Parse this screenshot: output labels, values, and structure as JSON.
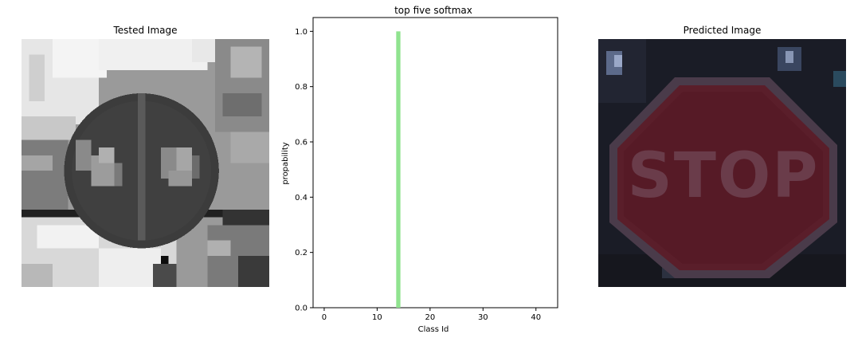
{
  "left_panel": {
    "title": "Tested Image",
    "icon": "grayscale-traffic-sign-image"
  },
  "right_panel": {
    "title": "Predicted Image",
    "icon": "stop-sign-image",
    "sign_text": "STOP"
  },
  "chart_data": {
    "type": "bar",
    "title": "top five softmax",
    "xlabel": "Class Id",
    "ylabel": "propability",
    "xlim": [
      -2.1,
      44.1
    ],
    "ylim": [
      0.0,
      1.05
    ],
    "xticks": [
      0,
      10,
      20,
      30,
      40
    ],
    "yticks": [
      0.0,
      0.2,
      0.4,
      0.6,
      0.8,
      1.0
    ],
    "bars": [
      {
        "x": 14,
        "value": 1.0
      },
      {
        "x": 1,
        "value": 0.0
      },
      {
        "x": 2,
        "value": 0.0
      },
      {
        "x": 3,
        "value": 0.0
      },
      {
        "x": 5,
        "value": 0.0
      }
    ],
    "bar_color": "#90e38f"
  }
}
